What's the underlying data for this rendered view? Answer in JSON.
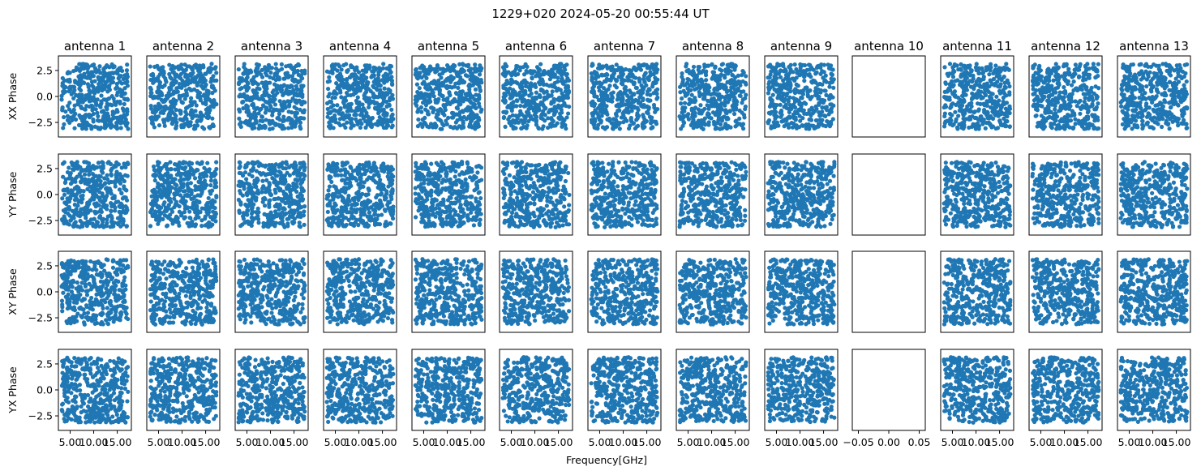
{
  "chart_data": {
    "type": "scatter",
    "title": "1229+020 2024-05-20 00:55:44 UT",
    "xlabel": "Frequency[GHz]",
    "columns": [
      "antenna 1",
      "antenna 2",
      "antenna 3",
      "antenna 4",
      "antenna 5",
      "antenna 6",
      "antenna 7",
      "antenna 8",
      "antenna 9",
      "antenna 10",
      "antenna 11",
      "antenna 12",
      "antenna 13"
    ],
    "rows": [
      "XX Phase",
      "YY Phase",
      "XY Phase",
      "YX Phase"
    ],
    "empty_column": "antenna 10",
    "xlim": [
      2.5,
      18.0
    ],
    "ylim": [
      -3.9,
      3.9
    ],
    "empty_xlim": [
      -0.06,
      0.06
    ],
    "yticks": [
      2.5,
      0.0,
      -2.5
    ],
    "ytick_labels": [
      "2.5",
      "0.0",
      "−2.5"
    ],
    "xticks": [
      5.0,
      10.0,
      15.0
    ],
    "xtick_labels": [
      "5.00",
      "10.00",
      "15.00"
    ],
    "empty_xticks": [
      -0.05,
      0.0,
      0.05
    ],
    "empty_xtick_labels": [
      "−0.05",
      "0.00",
      "0.05"
    ],
    "point_data": {
      "freq_min_ghz": 3.2,
      "freq_max_ghz": 17.3,
      "phase_min": -3.1416,
      "phase_max": 3.1416,
      "points_per_panel": 420
    },
    "marker_color": "#1f77b4"
  }
}
